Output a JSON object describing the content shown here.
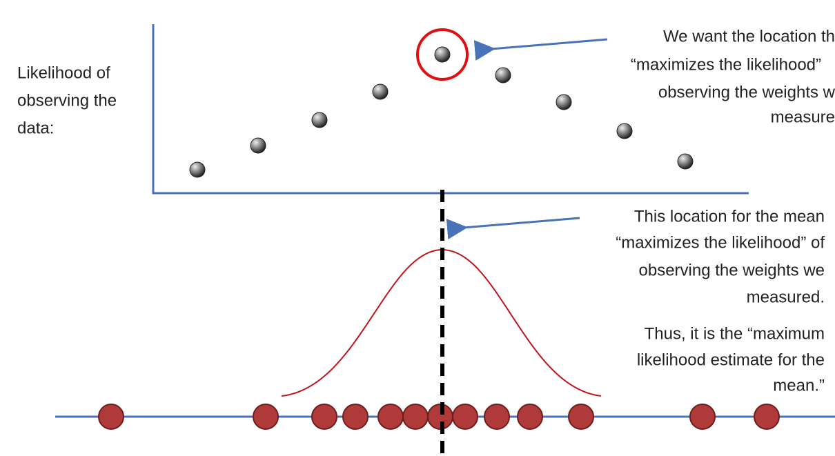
{
  "left_label": {
    "lines": [
      "Likelihood of",
      "observing the",
      "data:"
    ]
  },
  "top_note": {
    "lines": [
      "We want the location th",
      "“maximizes the likelihood”",
      "observing the weights w",
      "measure"
    ]
  },
  "middle_note": {
    "lines": [
      "This location for the mean",
      "“maximizes the likelihood” of",
      "observing the weights we",
      "measured."
    ]
  },
  "conclusion": {
    "lines": [
      "Thus, it is the “maximum",
      "likelihood estimate for the",
      "mean.”"
    ]
  }
}
